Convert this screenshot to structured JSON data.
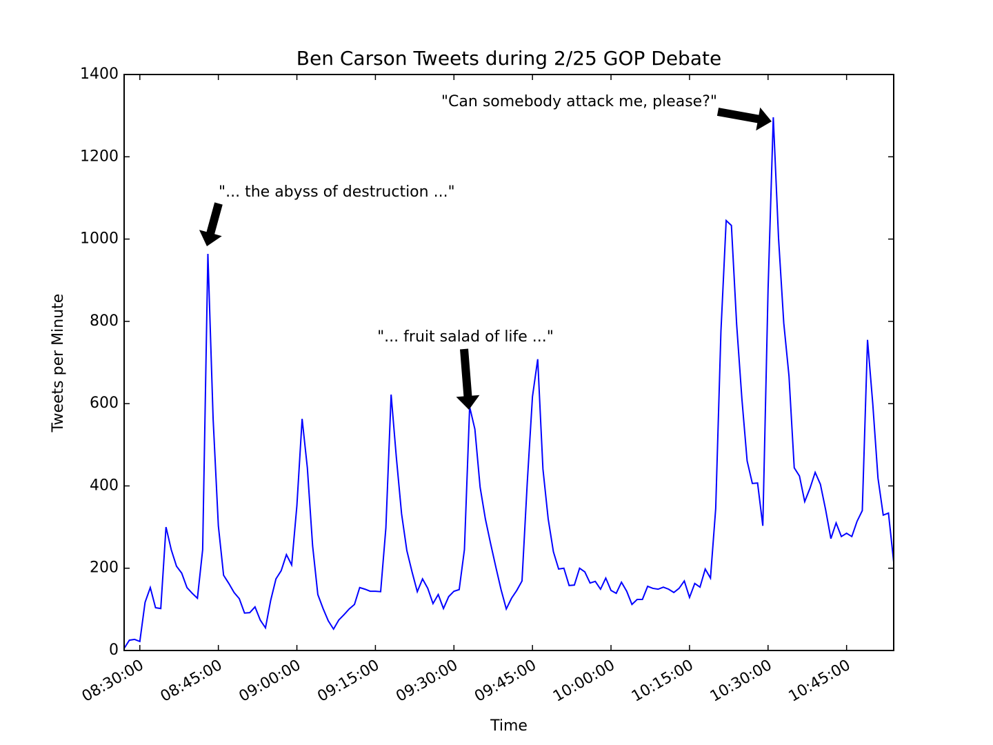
{
  "chart_data": {
    "type": "line",
    "title": "Ben Carson Tweets during 2/25 GOP Debate",
    "x_label": "Time",
    "y_label": "Tweets per Minute",
    "color": "#0000ff",
    "x": [
      "08:27:00",
      "08:28:00",
      "08:29:00",
      "08:30:00",
      "08:31:00",
      "08:32:00",
      "08:33:00",
      "08:34:00",
      "08:35:00",
      "08:36:00",
      "08:37:00",
      "08:38:00",
      "08:39:00",
      "08:40:00",
      "08:41:00",
      "08:42:00",
      "08:43:00",
      "08:44:00",
      "08:45:00",
      "08:46:00",
      "08:47:00",
      "08:48:00",
      "08:49:00",
      "08:50:00",
      "08:51:00",
      "08:52:00",
      "08:53:00",
      "08:54:00",
      "08:55:00",
      "08:56:00",
      "08:57:00",
      "08:58:00",
      "08:59:00",
      "09:00:00",
      "09:01:00",
      "09:02:00",
      "09:03:00",
      "09:04:00",
      "09:05:00",
      "09:06:00",
      "09:07:00",
      "09:08:00",
      "09:09:00",
      "09:10:00",
      "09:11:00",
      "09:12:00",
      "09:13:00",
      "09:14:00",
      "09:15:00",
      "09:16:00",
      "09:17:00",
      "09:18:00",
      "09:19:00",
      "09:20:00",
      "09:21:00",
      "09:22:00",
      "09:23:00",
      "09:24:00",
      "09:25:00",
      "09:26:00",
      "09:27:00",
      "09:28:00",
      "09:29:00",
      "09:30:00",
      "09:31:00",
      "09:32:00",
      "09:33:00",
      "09:34:00",
      "09:35:00",
      "09:36:00",
      "09:37:00",
      "09:38:00",
      "09:39:00",
      "09:40:00",
      "09:41:00",
      "09:42:00",
      "09:43:00",
      "09:44:00",
      "09:45:00",
      "09:46:00",
      "09:47:00",
      "09:48:00",
      "09:49:00",
      "09:50:00",
      "09:51:00",
      "09:52:00",
      "09:53:00",
      "09:54:00",
      "09:55:00",
      "09:56:00",
      "09:57:00",
      "09:58:00",
      "09:59:00",
      "10:00:00",
      "10:01:00",
      "10:02:00",
      "10:03:00",
      "10:04:00",
      "10:05:00",
      "10:06:00",
      "10:07:00",
      "10:08:00",
      "10:09:00",
      "10:10:00",
      "10:11:00",
      "10:12:00",
      "10:13:00",
      "10:14:00",
      "10:15:00",
      "10:16:00",
      "10:17:00",
      "10:18:00",
      "10:19:00",
      "10:20:00",
      "10:21:00",
      "10:22:00",
      "10:23:00",
      "10:24:00",
      "10:25:00",
      "10:26:00",
      "10:27:00",
      "10:28:00",
      "10:29:00",
      "10:30:00",
      "10:31:00",
      "10:32:00",
      "10:33:00",
      "10:34:00",
      "10:35:00",
      "10:36:00",
      "10:37:00",
      "10:38:00",
      "10:39:00",
      "10:40:00",
      "10:41:00",
      "10:42:00",
      "10:43:00",
      "10:44:00",
      "10:45:00",
      "10:46:00",
      "10:47:00",
      "10:48:00",
      "10:49:00",
      "10:50:00",
      "10:51:00",
      "10:52:00",
      "10:53:00",
      "10:54:00"
    ],
    "values": [
      5,
      25,
      27,
      22,
      117,
      153,
      104,
      102,
      300,
      245,
      205,
      188,
      153,
      139,
      127,
      245,
      964,
      563,
      303,
      183,
      163,
      141,
      126,
      91,
      92,
      106,
      74,
      55,
      122,
      174,
      194,
      233,
      208,
      352,
      563,
      444,
      255,
      136,
      102,
      72,
      52,
      74,
      87,
      101,
      112,
      153,
      149,
      144,
      144,
      143,
      298,
      622,
      469,
      332,
      243,
      191,
      143,
      174,
      151,
      114,
      136,
      102,
      131,
      144,
      148,
      245,
      592,
      538,
      397,
      320,
      260,
      203,
      148,
      101,
      127,
      146,
      169,
      407,
      617,
      708,
      441,
      320,
      240,
      198,
      200,
      158,
      159,
      200,
      191,
      164,
      168,
      149,
      176,
      146,
      139,
      166,
      144,
      112,
      124,
      124,
      156,
      151,
      149,
      154,
      149,
      141,
      151,
      169,
      129,
      163,
      154,
      198,
      176,
      345,
      776,
      1045,
      1033,
      793,
      612,
      461,
      406,
      407,
      303,
      877,
      1296,
      1003,
      796,
      667,
      444,
      424,
      362,
      394,
      433,
      404,
      342,
      272,
      310,
      277,
      285,
      277,
      314,
      340,
      755,
      600,
      419,
      329,
      334,
      215
    ],
    "xlim": [
      "08:27:00",
      "10:54:00"
    ],
    "xticks": [
      "08:30:00",
      "08:45:00",
      "09:00:00",
      "09:15:00",
      "09:30:00",
      "09:45:00",
      "10:00:00",
      "10:15:00",
      "10:30:00",
      "10:45:00"
    ],
    "ylim": [
      0,
      1400
    ],
    "yticks": [
      0,
      200,
      400,
      600,
      800,
      1000,
      1200,
      1400
    ],
    "annotations": [
      "\"... the abyss of destruction ...\"",
      "\"... fruit salad of life ...\"",
      "\"Can somebody attack me, please?\""
    ]
  }
}
